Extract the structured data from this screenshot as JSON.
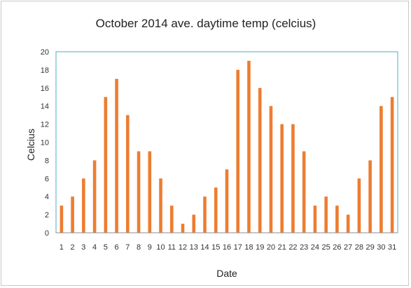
{
  "chart_data": {
    "type": "bar",
    "title": "October 2014 ave. daytime temp (celcius)",
    "xlabel": "Date",
    "ylabel": "Celcius",
    "ylim": [
      0,
      20
    ],
    "yticks": [
      0,
      2,
      4,
      6,
      8,
      10,
      12,
      14,
      16,
      18,
      20
    ],
    "grid": false,
    "legend": "none",
    "categories": [
      "1",
      "2",
      "3",
      "4",
      "5",
      "6",
      "7",
      "8",
      "9",
      "10",
      "11",
      "12",
      "13",
      "14",
      "15",
      "16",
      "17",
      "18",
      "19",
      "20",
      "21",
      "22",
      "23",
      "24",
      "25",
      "26",
      "27",
      "28",
      "29",
      "30",
      "31"
    ],
    "values": [
      3,
      4,
      6,
      8,
      15,
      17,
      13,
      9,
      9,
      6,
      3,
      1,
      2,
      4,
      5,
      7,
      18,
      19,
      16,
      14,
      12,
      12,
      9,
      3,
      4,
      3,
      2,
      6,
      8,
      14,
      15
    ],
    "colors": {
      "bar": "#ed7d31",
      "plot_border": "#4bacc6",
      "axis": "#8c8c8c"
    }
  }
}
